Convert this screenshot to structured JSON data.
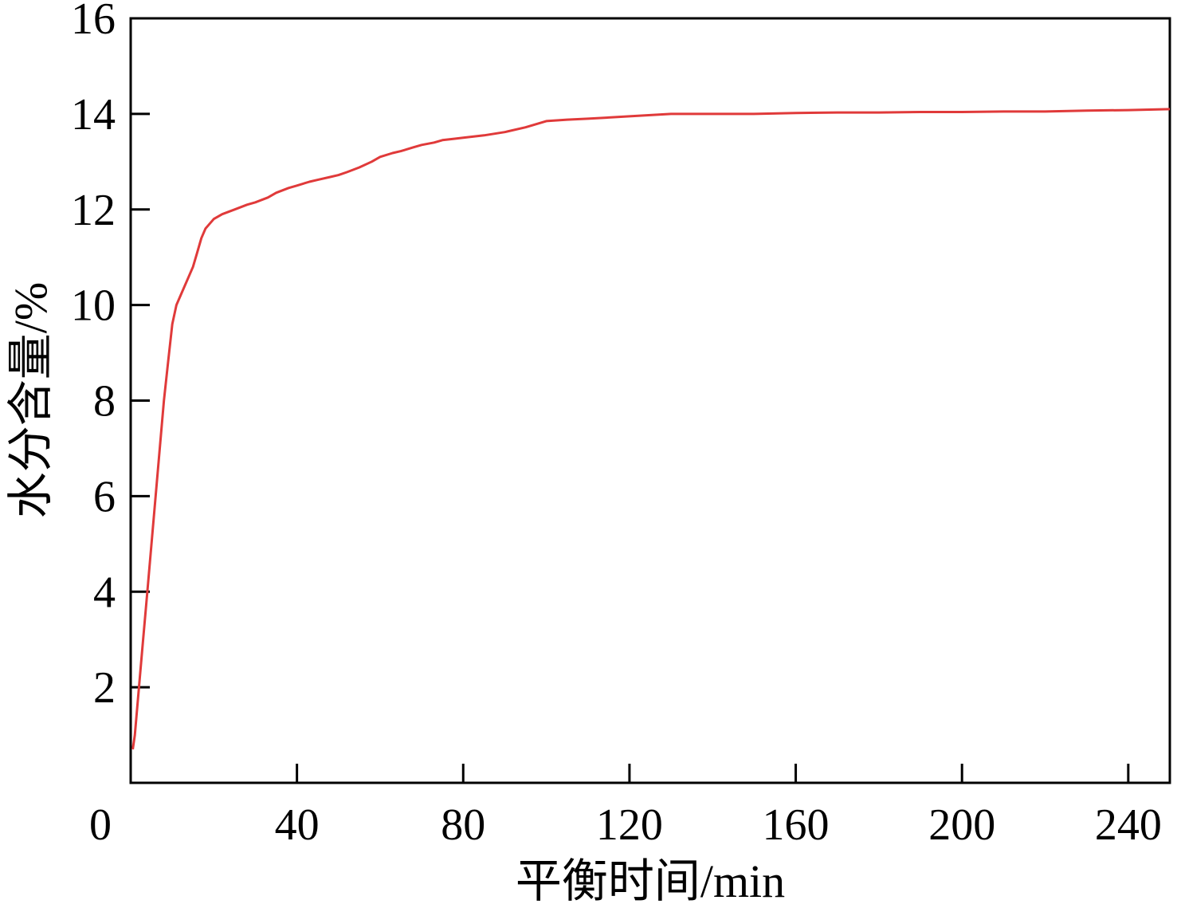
{
  "chart_data": {
    "type": "line",
    "title": "",
    "xlabel": "平衡时间/min",
    "ylabel": "水分含量/%",
    "xlim": [
      0,
      250
    ],
    "ylim": [
      0,
      16
    ],
    "x_ticks": [
      0,
      40,
      80,
      120,
      160,
      200,
      240
    ],
    "y_ticks": [
      2,
      4,
      6,
      8,
      10,
      12,
      14,
      16
    ],
    "grid": false,
    "legend": "none",
    "series": [
      {
        "color": "#e03a3a",
        "x": [
          0.5,
          1,
          2,
          3,
          4,
          5,
          6,
          7,
          8,
          9,
          10,
          11,
          12,
          14,
          15,
          16,
          17,
          18,
          20,
          22,
          25,
          28,
          30,
          33,
          35,
          38,
          40,
          43,
          45,
          48,
          50,
          52,
          55,
          58,
          60,
          63,
          65,
          68,
          70,
          73,
          75,
          78,
          80,
          85,
          90,
          95,
          100,
          105,
          110,
          120,
          130,
          140,
          150,
          160,
          170,
          180,
          190,
          200,
          210,
          220,
          230,
          240,
          250
        ],
        "values": [
          0.7,
          1.0,
          2.0,
          3.0,
          4.0,
          5.0,
          6.0,
          7.0,
          8.0,
          8.8,
          9.6,
          10.0,
          10.2,
          10.6,
          10.8,
          11.1,
          11.4,
          11.6,
          11.8,
          11.9,
          12.0,
          12.1,
          12.15,
          12.25,
          12.35,
          12.45,
          12.5,
          12.58,
          12.62,
          12.68,
          12.72,
          12.78,
          12.88,
          13.0,
          13.1,
          13.18,
          13.22,
          13.3,
          13.35,
          13.4,
          13.45,
          13.48,
          13.5,
          13.55,
          13.62,
          13.72,
          13.85,
          13.88,
          13.9,
          13.95,
          14.0,
          14.0,
          14.0,
          14.02,
          14.03,
          14.03,
          14.04,
          14.04,
          14.05,
          14.05,
          14.07,
          14.08,
          14.1
        ]
      }
    ]
  }
}
